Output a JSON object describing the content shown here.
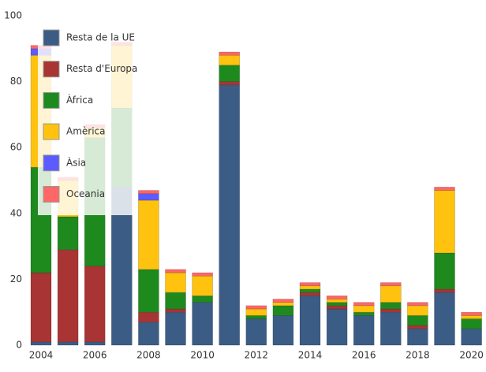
{
  "chart_data": {
    "type": "stacked_bar",
    "categories": [
      "2004",
      null,
      "2006",
      null,
      "2008",
      null,
      "2010",
      null,
      "2012",
      null,
      "2014",
      null,
      "2016",
      null,
      "2018",
      null,
      "2020"
    ],
    "series": [
      {
        "name": "Resta de la UE",
        "color": "#3b5c85",
        "values": [
          1,
          1,
          1,
          48,
          7,
          10,
          13,
          79,
          8,
          9,
          15,
          11,
          9,
          10,
          5,
          16,
          5
        ]
      },
      {
        "name": "Resta d'Europa",
        "color": "#a83434",
        "values": [
          21,
          28,
          23,
          0,
          3,
          1,
          0,
          1,
          0,
          0,
          1,
          1,
          0,
          1,
          1,
          1,
          0
        ]
      },
      {
        "name": "Àfrica",
        "color": "#1e8a1e",
        "values": [
          32,
          10,
          39,
          24,
          13,
          5,
          2,
          5,
          1,
          3,
          1,
          1,
          1,
          2,
          3,
          11,
          3
        ]
      },
      {
        "name": "Amèrica",
        "color": "#ffc20e",
        "values": [
          34,
          11,
          3,
          19,
          21,
          6,
          6,
          3,
          2,
          1,
          1,
          1,
          2,
          5,
          3,
          19,
          1
        ]
      },
      {
        "name": "Àsia",
        "color": "#5b5bff",
        "values": [
          2,
          0,
          0,
          0,
          2,
          0,
          0,
          0,
          0,
          0,
          0,
          0,
          0,
          0,
          0,
          0,
          0
        ]
      },
      {
        "name": "Oceania",
        "color": "#ff6666",
        "values": [
          1,
          1,
          1,
          1,
          1,
          1,
          1,
          1,
          1,
          1,
          1,
          1,
          1,
          1,
          1,
          1,
          1
        ]
      }
    ],
    "ylim": [
      0,
      100
    ],
    "yticks": [
      0,
      20,
      40,
      60,
      80,
      100
    ],
    "grid": false,
    "legend": "top-left"
  }
}
